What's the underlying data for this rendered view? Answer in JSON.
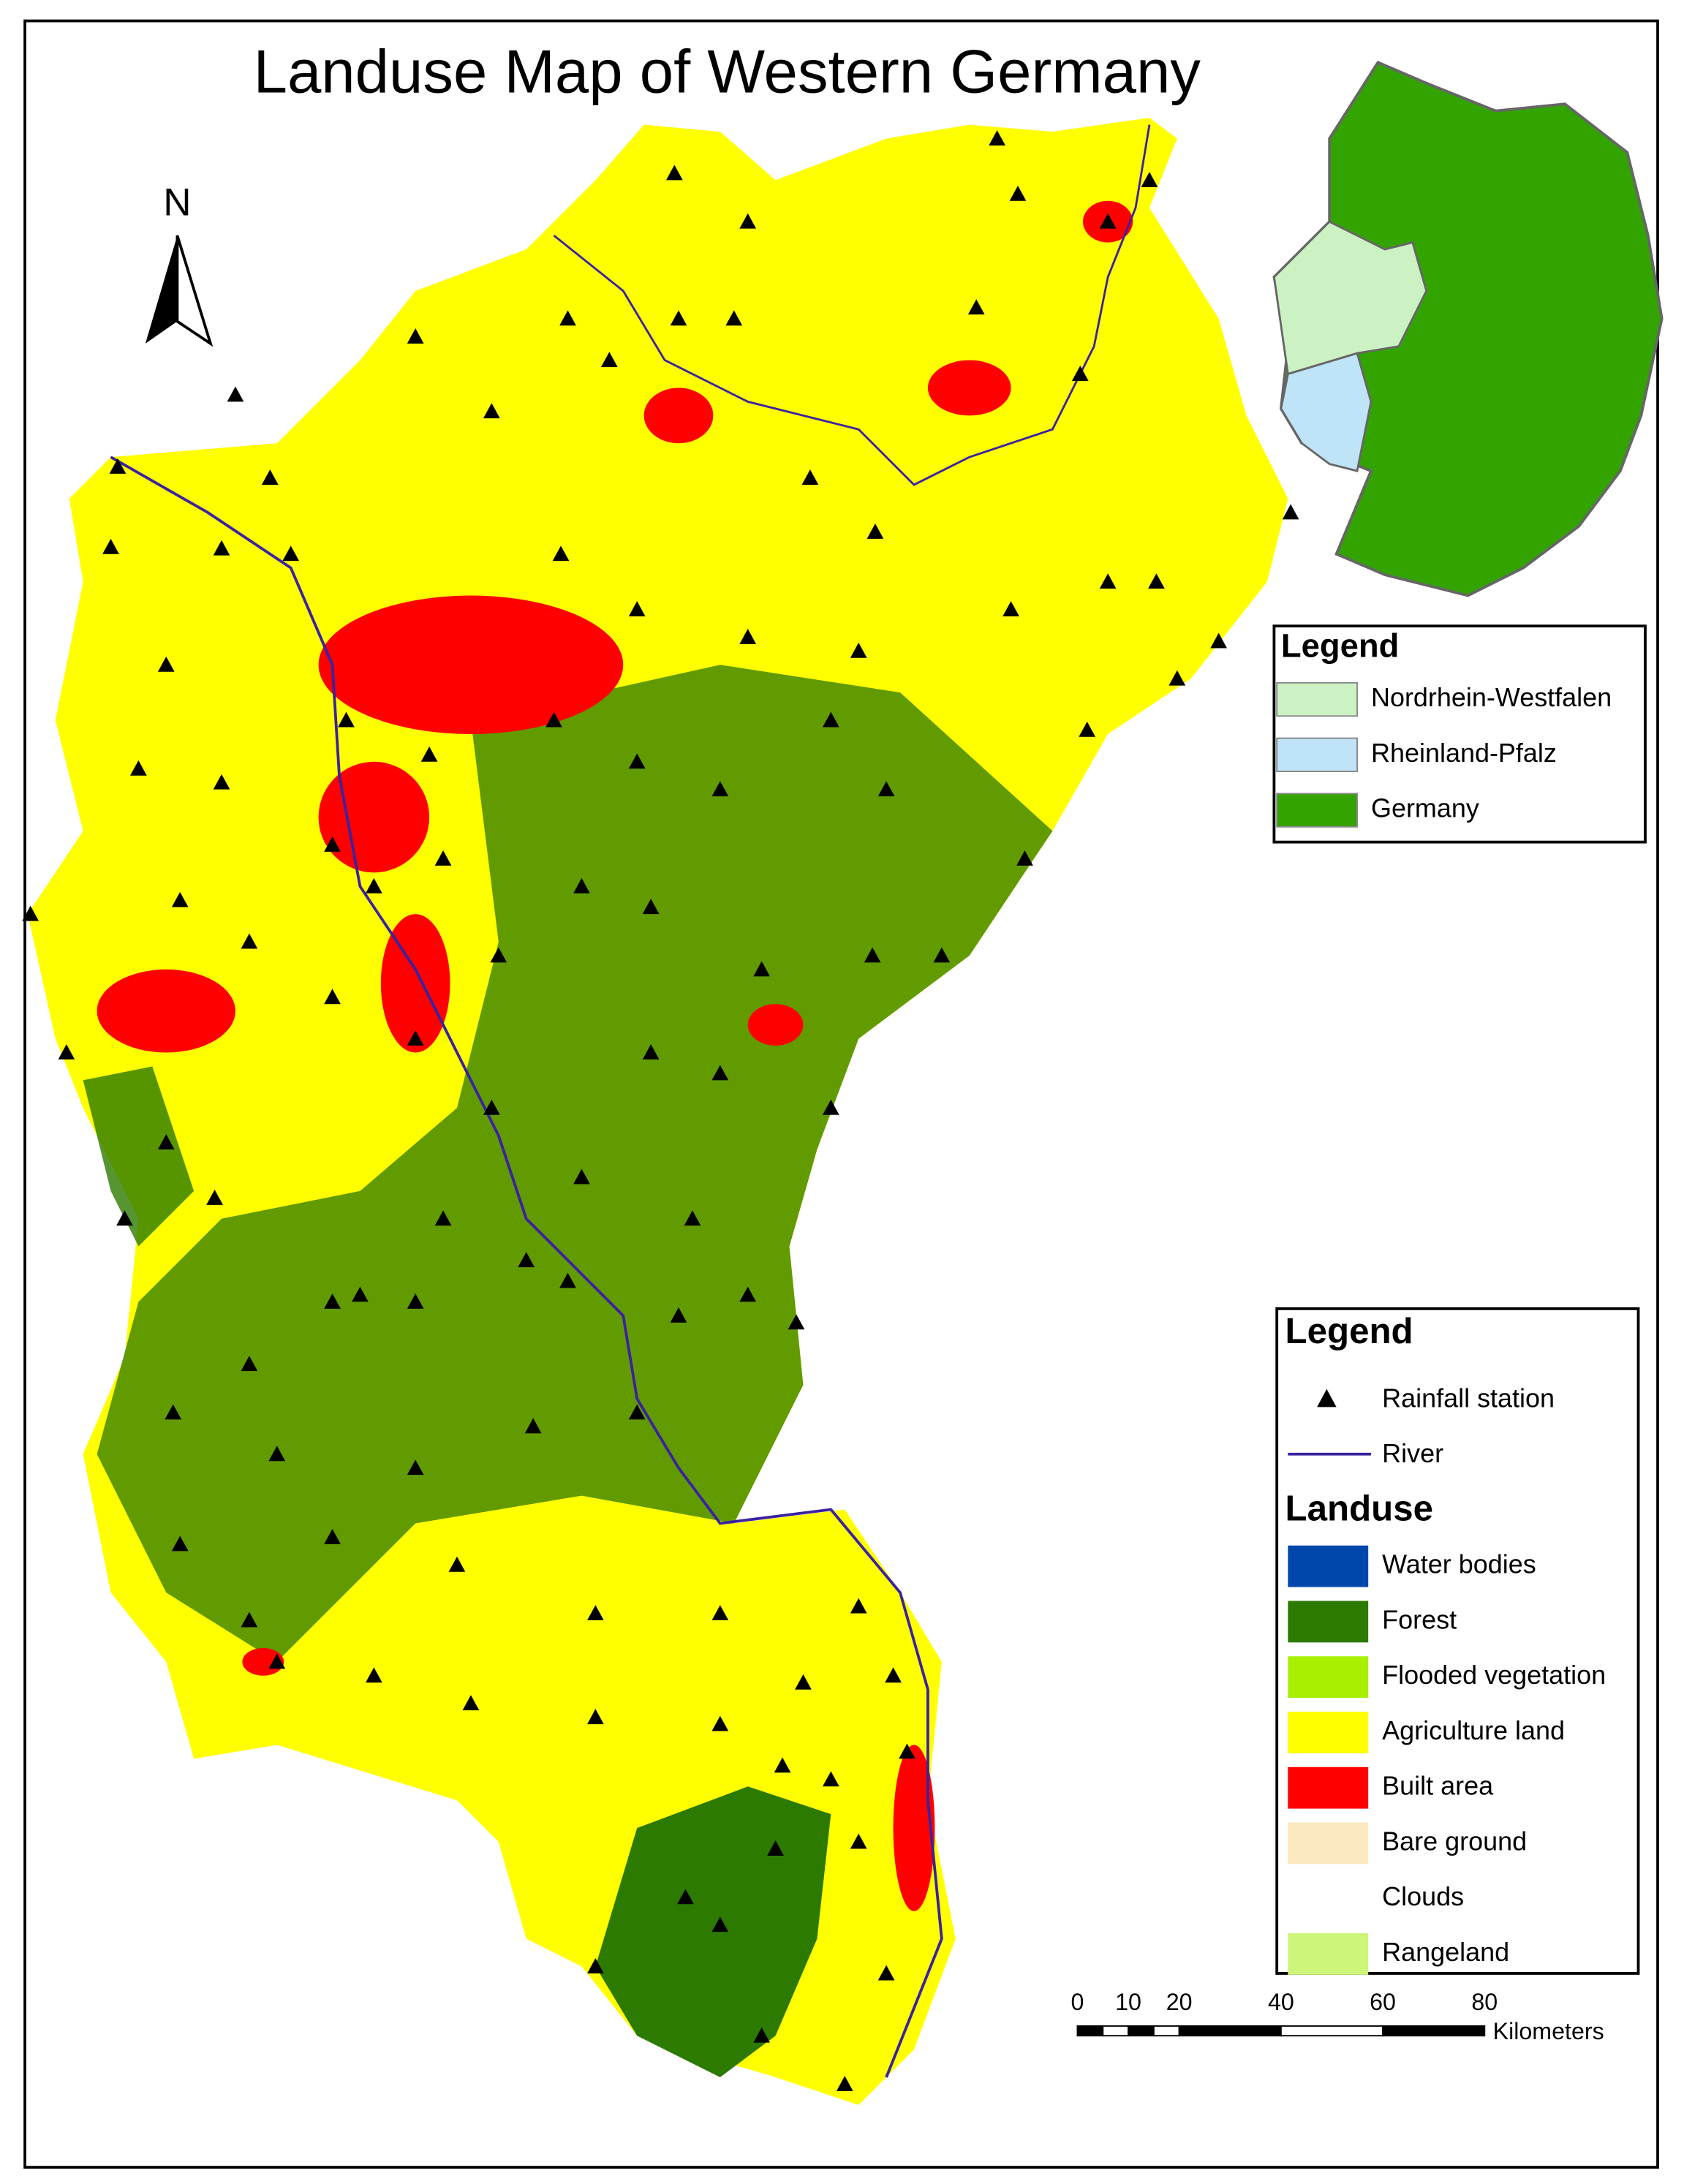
{
  "title": "Landuse Map of Western Germany",
  "north_arrow": "N",
  "inset_legend": {
    "title": "Legend",
    "items": [
      {
        "name": "Nordrhein-Westfalen",
        "color": "#ccf2c4"
      },
      {
        "name": "Rheinland-Pfalz",
        "color": "#bfe3f7"
      },
      {
        "name": "Germany",
        "color": "#33a300"
      }
    ]
  },
  "legend": {
    "title": "Legend",
    "symbols": [
      "Rainfall station",
      "River"
    ],
    "landuse_title": "Landuse",
    "landuse": [
      {
        "name": "Water bodies",
        "color": "#0047ab"
      },
      {
        "name": "Forest",
        "color": "#2d7a00"
      },
      {
        "name": "Flooded vegetation",
        "color": "#a6f000"
      },
      {
        "name": "Agriculture land",
        "color": "#ffff00"
      },
      {
        "name": "Built area",
        "color": "#ff0000"
      },
      {
        "name": "Bare ground",
        "color": "#fde9c0"
      },
      {
        "name": "Clouds",
        "color": "#ffffff"
      },
      {
        "name": "Rangeland",
        "color": "#ccf57a"
      }
    ]
  },
  "scale_bar": {
    "ticks": [
      0,
      10,
      20,
      40,
      60,
      80
    ],
    "unit": "Kilometers"
  }
}
